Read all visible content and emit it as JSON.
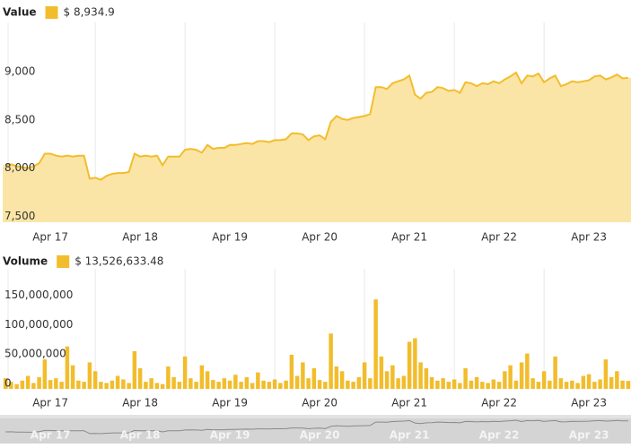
{
  "chart_data": [
    {
      "type": "area",
      "legend_value": "$ 8,934.9",
      "categories": [
        null,
        null,
        null,
        null,
        null,
        null,
        null,
        null,
        "Apr 17",
        null,
        null,
        null,
        null,
        null,
        null,
        null,
        null,
        null,
        null,
        null,
        null,
        null,
        null,
        null,
        "Apr 18",
        null,
        null,
        null,
        null,
        null,
        null,
        null,
        null,
        null,
        null,
        null,
        null,
        null,
        null,
        null,
        "Apr 19",
        null,
        null,
        null,
        null,
        null,
        null,
        null,
        null,
        null,
        null,
        null,
        null,
        null,
        null,
        null,
        "Apr 20",
        null,
        null,
        null,
        null,
        null,
        null,
        null,
        null,
        null,
        null,
        null,
        null,
        null,
        null,
        null,
        "Apr 21",
        null,
        null,
        null,
        null,
        null,
        null,
        null,
        null,
        null,
        null,
        null,
        null,
        null,
        null,
        null,
        "Apr 22",
        null,
        null,
        null,
        null,
        null,
        null,
        null,
        null,
        null,
        null,
        null,
        null,
        null,
        null,
        null,
        "Apr 23",
        null,
        null,
        null,
        null,
        null,
        null,
        null
      ],
      "series": [
        {
          "name": "Value",
          "color": "#f2bd2c",
          "fill": "#fbe5a6",
          "values": [
            8030,
            8040,
            8020,
            8010,
            8000,
            8020,
            8050,
            8150,
            8150,
            8130,
            8120,
            8130,
            8120,
            8130,
            8130,
            7890,
            7900,
            7880,
            7920,
            7940,
            7950,
            7950,
            7960,
            8150,
            8120,
            8130,
            8120,
            8130,
            8030,
            8120,
            8120,
            8120,
            8190,
            8200,
            8190,
            8160,
            8240,
            8200,
            8210,
            8210,
            8240,
            8240,
            8250,
            8260,
            8250,
            8280,
            8280,
            8270,
            8290,
            8290,
            8300,
            8360,
            8360,
            8350,
            8290,
            8330,
            8340,
            8300,
            8480,
            8540,
            8510,
            8500,
            8520,
            8530,
            8540,
            8560,
            8840,
            8840,
            8820,
            8880,
            8900,
            8920,
            8960,
            8760,
            8720,
            8780,
            8790,
            8840,
            8830,
            8800,
            8810,
            8780,
            8890,
            8880,
            8850,
            8880,
            8870,
            8900,
            8880,
            8920,
            8950,
            8990,
            8880,
            8960,
            8950,
            8980,
            8890,
            8930,
            8960,
            8850,
            8870,
            8900,
            8890,
            8900,
            8910,
            8950,
            8960,
            8920,
            8940,
            8970,
            8930,
            8935
          ]
        }
      ],
      "ylim": [
        7440,
        9510
      ],
      "yticks": [
        {
          "value": 7500,
          "label": "7,500"
        },
        {
          "value": 8000,
          "label": "8,000"
        },
        {
          "value": 8500,
          "label": "8,500"
        },
        {
          "value": 9000,
          "label": "9,000"
        }
      ]
    },
    {
      "type": "bar",
      "legend_value": "$ 13,526,633.48",
      "categories": [
        null,
        null,
        null,
        null,
        null,
        null,
        null,
        null,
        "Apr 17",
        null,
        null,
        null,
        null,
        null,
        null,
        null,
        null,
        null,
        null,
        null,
        null,
        null,
        null,
        null,
        "Apr 18",
        null,
        null,
        null,
        null,
        null,
        null,
        null,
        null,
        null,
        null,
        null,
        null,
        null,
        null,
        null,
        "Apr 19",
        null,
        null,
        null,
        null,
        null,
        null,
        null,
        null,
        null,
        null,
        null,
        null,
        null,
        null,
        null,
        "Apr 20",
        null,
        null,
        null,
        null,
        null,
        null,
        null,
        null,
        null,
        null,
        null,
        null,
        null,
        null,
        null,
        "Apr 21",
        null,
        null,
        null,
        null,
        null,
        null,
        null,
        null,
        null,
        null,
        null,
        null,
        null,
        null,
        null,
        "Apr 22",
        null,
        null,
        null,
        null,
        null,
        null,
        null,
        null,
        null,
        null,
        null,
        null,
        null,
        null,
        null,
        "Apr 23",
        null,
        null,
        null,
        null,
        null,
        null,
        null
      ],
      "series": [
        {
          "name": "Volume",
          "color": "#f2bd2c",
          "values": [
            18000000,
            12000000,
            8000000,
            14000000,
            22000000,
            10000000,
            20000000,
            50000000,
            15000000,
            18000000,
            12000000,
            72000000,
            40000000,
            14000000,
            12000000,
            45000000,
            30000000,
            12000000,
            10000000,
            14000000,
            22000000,
            16000000,
            10000000,
            64000000,
            35000000,
            12000000,
            18000000,
            10000000,
            8000000,
            38000000,
            20000000,
            12000000,
            55000000,
            18000000,
            12000000,
            40000000,
            30000000,
            15000000,
            12000000,
            18000000,
            14000000,
            24000000,
            12000000,
            20000000,
            10000000,
            28000000,
            14000000,
            12000000,
            16000000,
            10000000,
            14000000,
            58000000,
            22000000,
            45000000,
            18000000,
            35000000,
            15000000,
            12000000,
            94000000,
            38000000,
            30000000,
            14000000,
            12000000,
            20000000,
            45000000,
            18000000,
            152000000,
            55000000,
            30000000,
            40000000,
            18000000,
            22000000,
            80000000,
            86000000,
            45000000,
            35000000,
            20000000,
            14000000,
            18000000,
            12000000,
            16000000,
            10000000,
            35000000,
            14000000,
            20000000,
            12000000,
            10000000,
            16000000,
            12000000,
            30000000,
            40000000,
            14000000,
            45000000,
            60000000,
            18000000,
            12000000,
            30000000,
            14000000,
            55000000,
            18000000,
            12000000,
            14000000,
            10000000,
            22000000,
            25000000,
            12000000,
            16000000,
            50000000,
            20000000,
            30000000,
            14000000,
            13526633.48
          ]
        }
      ],
      "ylim": [
        0,
        204000000
      ],
      "yticks": [
        0,
        {
          "value": 50000000,
          "label": "50,000,000"
        },
        {
          "value": 100000000,
          "label": "100,000,000"
        },
        {
          "value": 150000000,
          "label": "150,000,000"
        }
      ]
    }
  ]
}
